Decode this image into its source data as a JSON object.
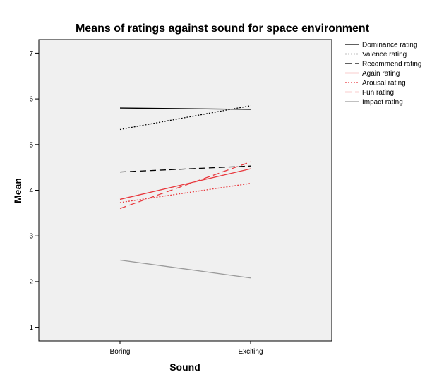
{
  "chart_data": {
    "type": "line",
    "title": "Means of ratings against sound for space environment",
    "xlabel": "Sound",
    "ylabel": "Mean",
    "categories": [
      "Boring",
      "Exciting"
    ],
    "ylim": [
      0.7,
      7.3
    ],
    "yticks": [
      1,
      2,
      3,
      4,
      5,
      6,
      7
    ],
    "grid": false,
    "legend_position": "top-right-outside",
    "plot_background": "#f0f0f0",
    "series": [
      {
        "name": "Dominance rating",
        "values": [
          5.8,
          5.77
        ],
        "color": "#000000",
        "dash": "solid"
      },
      {
        "name": "Valence rating",
        "values": [
          5.33,
          5.85
        ],
        "color": "#000000",
        "dash": "dotted"
      },
      {
        "name": "Recommend rating",
        "values": [
          4.4,
          4.53
        ],
        "color": "#000000",
        "dash": "dashed"
      },
      {
        "name": "Again rating",
        "values": [
          3.8,
          4.47
        ],
        "color": "#e8383d",
        "dash": "solid"
      },
      {
        "name": "Arousal rating",
        "values": [
          3.73,
          4.15
        ],
        "color": "#e8383d",
        "dash": "dotted"
      },
      {
        "name": "Fun rating",
        "values": [
          3.6,
          4.62
        ],
        "color": "#e8383d",
        "dash": "dashed"
      },
      {
        "name": "Impact rating",
        "values": [
          2.47,
          2.08
        ],
        "color": "#9a9a9a",
        "dash": "solid"
      }
    ]
  }
}
